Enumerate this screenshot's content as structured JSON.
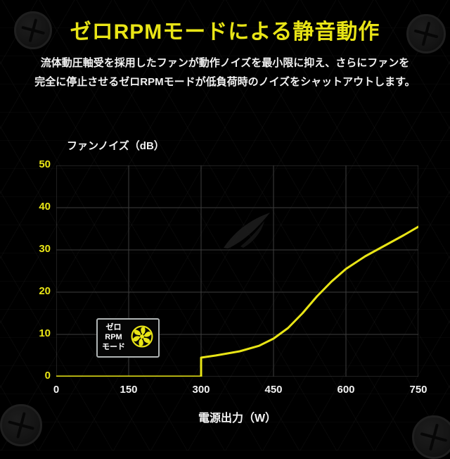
{
  "title": "ゼロRPMモードによる静音動作",
  "subtitle": [
    "流体動圧軸受を採用したファンが動作ノイズを最小限に抑え、さらにファンを",
    "完全に停止させるゼロRPMモードが低負荷時のノイズをシャットアウトします。"
  ],
  "colors": {
    "background": "#000000",
    "accent_yellow": "#e9e516",
    "text_white": "#f2f2f2",
    "grid": "#3e3e3e",
    "badge_border": "#b0b5b5"
  },
  "chart_data": {
    "type": "line",
    "ylabel": "ファンノイズ（dB）",
    "xlabel": "電源出力（W）",
    "x_ticks": [
      0,
      150,
      300,
      450,
      600,
      750
    ],
    "y_ticks": [
      0,
      10,
      20,
      30,
      40,
      50
    ],
    "xlim": [
      0,
      750
    ],
    "ylim": [
      0,
      50
    ],
    "grid": true,
    "series": [
      {
        "name": "fan-noise-db",
        "color": "#e9e516",
        "points": [
          [
            0,
            0
          ],
          [
            300,
            0
          ],
          [
            300,
            4.5
          ],
          [
            330,
            5
          ],
          [
            380,
            6
          ],
          [
            420,
            7.3
          ],
          [
            450,
            9
          ],
          [
            480,
            11.5
          ],
          [
            510,
            15
          ],
          [
            540,
            19
          ],
          [
            570,
            22.5
          ],
          [
            600,
            25.5
          ],
          [
            640,
            28.5
          ],
          [
            680,
            31
          ],
          [
            720,
            33.5
          ],
          [
            750,
            35.5
          ]
        ]
      }
    ],
    "badge": {
      "lines": [
        "ゼロ",
        "RPM",
        "モード"
      ],
      "icon": "fan-icon"
    }
  }
}
